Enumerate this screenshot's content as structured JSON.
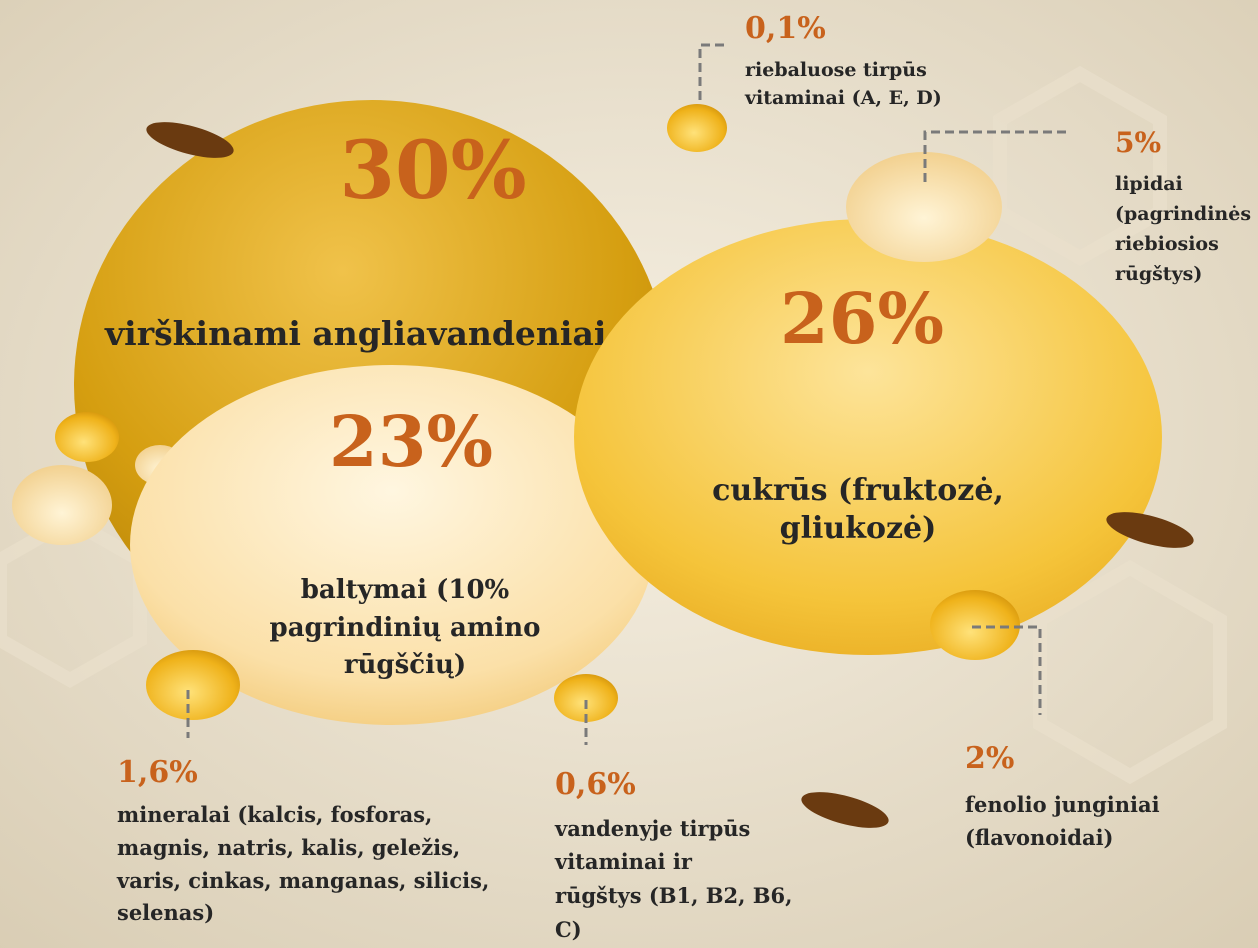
{
  "items": [
    {
      "value_label": "30%",
      "lines": [
        "virškinami angliavandeniai"
      ]
    },
    {
      "value_label": "26%",
      "lines": [
        "cukrūs (fruktozė,",
        "gliukozė)"
      ]
    },
    {
      "value_label": "23%",
      "lines": [
        "baltymai (10%",
        "pagrindinių amino",
        "rūgščių)"
      ]
    },
    {
      "value_label": "0,1%",
      "lines": [
        "riebaluose tirpūs",
        "vitaminai (A, E, D)"
      ]
    },
    {
      "value_label": "5%",
      "lines": [
        "lipidai",
        "(pagrindinės",
        "riebiosios",
        "rūgštys)"
      ]
    },
    {
      "value_label": "1,6%",
      "lines": [
        "mineralai (kalcis, fosforas,",
        "magnis, natris, kalis, geležis,",
        "varis, cinkas, manganas, silicis,",
        "selenas)"
      ]
    },
    {
      "value_label": "0,6%",
      "lines": [
        "vandenyje tirpūs",
        "vitaminai ir",
        "rūgštys (B1, B2, B6,",
        "C)"
      ]
    },
    {
      "value_label": "2%",
      "lines": [
        "fenolio junginiai",
        "(flavonoidai)"
      ]
    }
  ]
}
